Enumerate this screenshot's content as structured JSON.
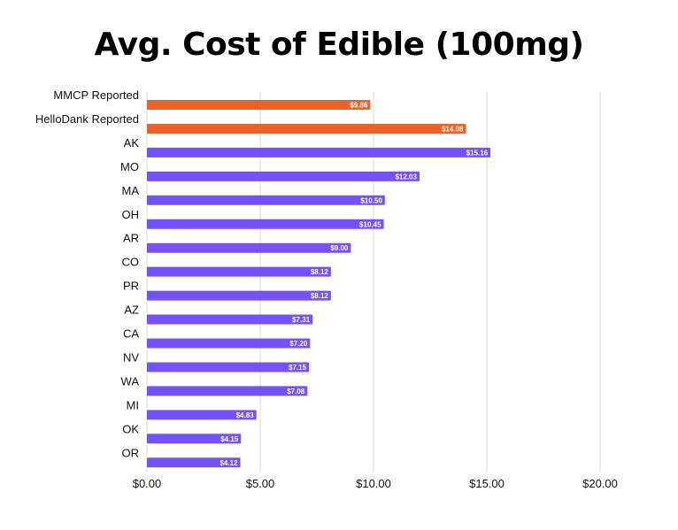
{
  "chart_data": {
    "type": "bar",
    "orientation": "horizontal",
    "title": "Avg. Cost of Edible (100mg)",
    "xlabel": "",
    "ylabel": "",
    "xlim": [
      0,
      20
    ],
    "x_ticks": [
      "$0.00",
      "$5.00",
      "$10.00",
      "$15.00",
      "$20.00"
    ],
    "x_tick_values": [
      0,
      5,
      10,
      15,
      20
    ],
    "grid": "vertical",
    "legend": "none",
    "categories": [
      "MMCP Reported",
      "HelloDank Reported",
      "AK",
      "MO",
      "MA",
      "OH",
      "AR",
      "CO",
      "PR",
      "AZ",
      "CA",
      "NV",
      "WA",
      "MI",
      "OK",
      "OR"
    ],
    "values": [
      9.86,
      14.08,
      15.16,
      12.03,
      10.5,
      10.45,
      9.0,
      8.12,
      8.12,
      7.31,
      7.2,
      7.15,
      7.08,
      4.83,
      4.15,
      4.12
    ],
    "data_labels": [
      "$9.86",
      "$14.08",
      "$15.16",
      "$12.03",
      "$10.50",
      "$10.45",
      "$9.00",
      "$8.12",
      "$8.12",
      "$7.31",
      "$7.20",
      "$7.15",
      "$7.08",
      "$4.83",
      "$4.15",
      "$4.12"
    ],
    "bar_colors": [
      "#e8622a",
      "#e8622a",
      "#7452f7",
      "#7452f7",
      "#7452f7",
      "#7452f7",
      "#7452f7",
      "#7452f7",
      "#7452f7",
      "#7452f7",
      "#7452f7",
      "#7452f7",
      "#7452f7",
      "#7452f7",
      "#7452f7",
      "#7452f7"
    ],
    "colors": {
      "reported": "#e8622a",
      "state": "#7452f7",
      "grid": "#dddddd"
    }
  }
}
